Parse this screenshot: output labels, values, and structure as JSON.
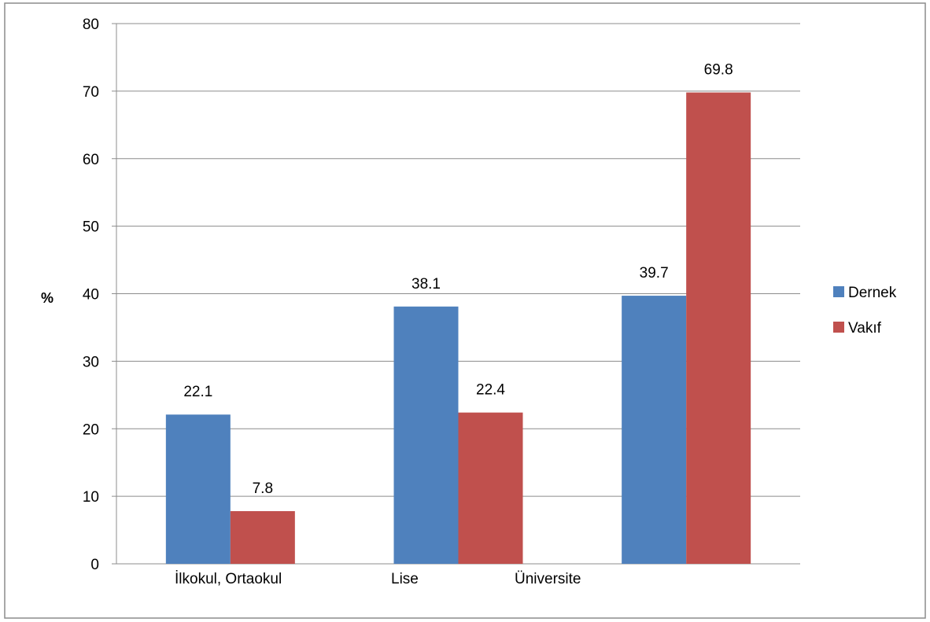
{
  "chart_data": {
    "type": "bar",
    "title": "",
    "xlabel": "",
    "ylabel": "%",
    "categories": [
      "İlkokul, Ortaokul",
      "Lise",
      "Üniversite"
    ],
    "series": [
      {
        "name": "Dernek",
        "values": [
          22.1,
          38.1,
          39.7
        ],
        "color": "#4F81BD"
      },
      {
        "name": "Vakıf",
        "values": [
          7.8,
          22.4,
          69.8
        ],
        "color": "#C0504D"
      }
    ],
    "ylim": [
      0,
      80
    ],
    "yticks": [
      "0",
      "10",
      "20",
      "30",
      "40",
      "50",
      "60",
      "70",
      "80"
    ],
    "data_labels": [
      [
        "22.1",
        "38.1",
        "39.7"
      ],
      [
        "7.8",
        "22.4",
        "69.8"
      ]
    ],
    "grid": true,
    "legend_position": "right"
  }
}
